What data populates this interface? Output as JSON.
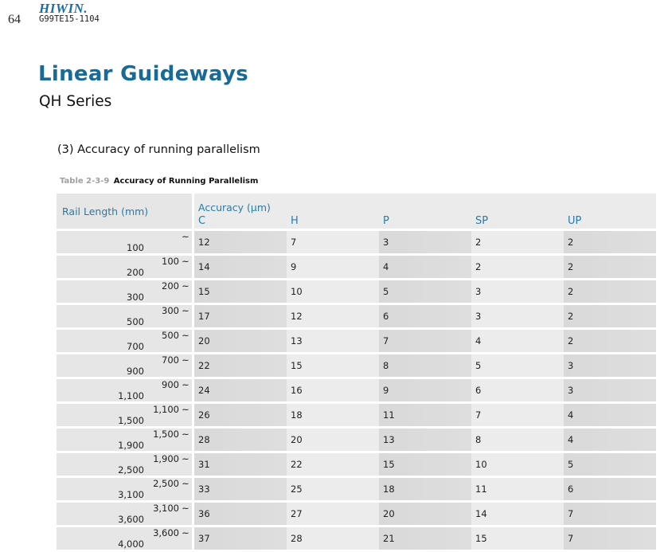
{
  "header": {
    "page_number": "64",
    "brand": "HIWIN.",
    "doc_code": "G99TE15-1104"
  },
  "title": "Linear Guideways",
  "subtitle": "QH Series",
  "section_heading": "(3) Accuracy of running parallelism",
  "table": {
    "caption_number": "Table 2-3-9",
    "caption_title": "Accuracy of Running Parallelism",
    "rail_header": "Rail Length (mm)",
    "accuracy_header": "Accuracy (μm)",
    "grades": [
      "C",
      "H",
      "P",
      "SP",
      "UP"
    ],
    "rows": [
      {
        "from": "",
        "to": "100",
        "values": [
          "12",
          "7",
          "3",
          "2",
          "2"
        ]
      },
      {
        "from": "100",
        "to": "200",
        "values": [
          "14",
          "9",
          "4",
          "2",
          "2"
        ]
      },
      {
        "from": "200",
        "to": "300",
        "values": [
          "15",
          "10",
          "5",
          "3",
          "2"
        ]
      },
      {
        "from": "300",
        "to": "500",
        "values": [
          "17",
          "12",
          "6",
          "3",
          "2"
        ]
      },
      {
        "from": "500",
        "to": "700",
        "values": [
          "20",
          "13",
          "7",
          "4",
          "2"
        ]
      },
      {
        "from": "700",
        "to": "900",
        "values": [
          "22",
          "15",
          "8",
          "5",
          "3"
        ]
      },
      {
        "from": "900",
        "to": "1,100",
        "values": [
          "24",
          "16",
          "9",
          "6",
          "3"
        ]
      },
      {
        "from": "1,100",
        "to": "1,500",
        "values": [
          "26",
          "18",
          "11",
          "7",
          "4"
        ]
      },
      {
        "from": "1,500",
        "to": "1,900",
        "values": [
          "28",
          "20",
          "13",
          "8",
          "4"
        ]
      },
      {
        "from": "1,900",
        "to": "2,500",
        "values": [
          "31",
          "22",
          "15",
          "10",
          "5"
        ]
      },
      {
        "from": "2,500",
        "to": "3,100",
        "values": [
          "33",
          "25",
          "18",
          "11",
          "6"
        ]
      },
      {
        "from": "3,100",
        "to": "3,600",
        "values": [
          "36",
          "27",
          "20",
          "14",
          "7"
        ]
      },
      {
        "from": "3,600",
        "to": "4,000",
        "values": [
          "37",
          "28",
          "21",
          "15",
          "7"
        ]
      }
    ],
    "range_separator": "~"
  },
  "colors": {
    "title": "#1a6a96",
    "header_text": "#2a7aa8",
    "brand": "#1a6fa0"
  }
}
